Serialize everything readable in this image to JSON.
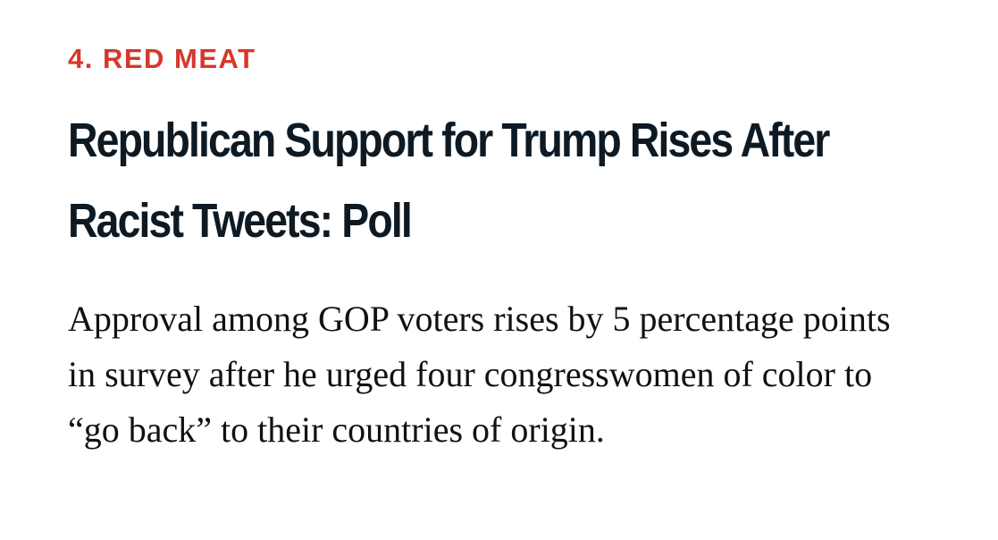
{
  "article": {
    "kicker": "4. RED MEAT",
    "headline_line1": "Republican Support for Trump Rises After",
    "headline_line2": "Racist Tweets: Poll",
    "dek": "Approval among GOP voters rises by 5 percentage points in survey after he urged four congresswomen of color to “go back” to their countries of origin."
  },
  "colors": {
    "kicker": "#d7372a",
    "headline": "#0d1a24",
    "dek": "#111111",
    "background": "#ffffff"
  }
}
